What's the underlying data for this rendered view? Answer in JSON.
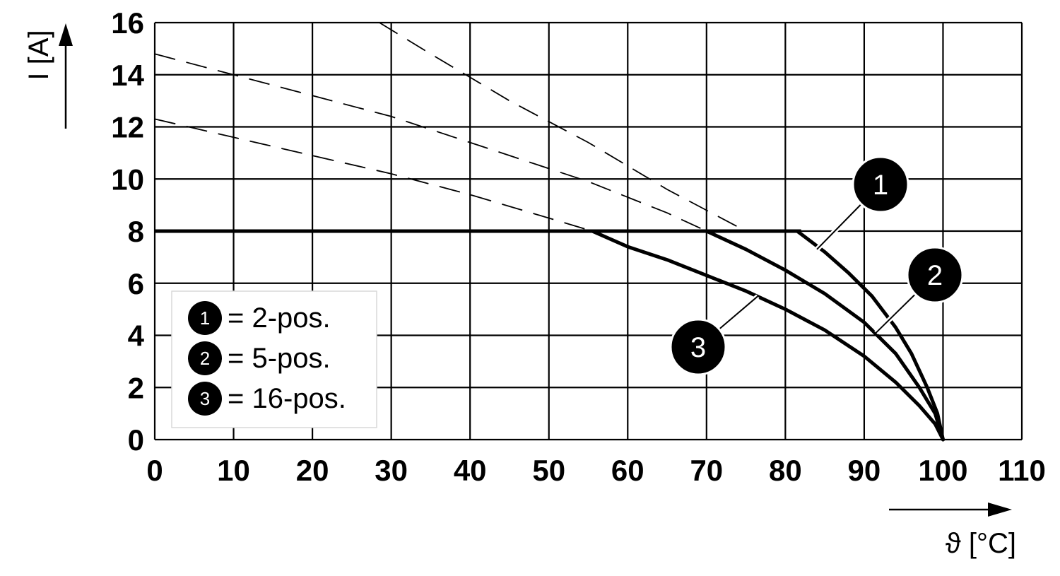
{
  "chart_data": {
    "type": "line",
    "title": "",
    "xlabel": "ϑ [°C]",
    "ylabel": "I [A]",
    "xlim": [
      0,
      110
    ],
    "ylim": [
      0,
      16
    ],
    "x_ticks": [
      "0",
      "10",
      "20",
      "30",
      "40",
      "50",
      "60",
      "70",
      "80",
      "90",
      "100",
      "110"
    ],
    "y_ticks": [
      "0",
      "2",
      "4",
      "6",
      "8",
      "10",
      "12",
      "14",
      "16"
    ],
    "grid": true,
    "legend_position": "bottom-left",
    "legend": [
      {
        "marker": "1",
        "text": "= 2-pos."
      },
      {
        "marker": "2",
        "text": "= 5-pos."
      },
      {
        "marker": "3",
        "text": "= 16-pos."
      }
    ],
    "limit_line": {
      "y": 8,
      "x_range": [
        0,
        82
      ]
    },
    "series": [
      {
        "marker": "1",
        "dashed": [
          [
            28.5,
            16
          ],
          [
            35,
            14.8
          ],
          [
            40,
            13.9
          ],
          [
            45,
            13.0
          ],
          [
            50,
            12.2
          ],
          [
            55,
            11.4
          ],
          [
            60,
            10.5
          ],
          [
            65,
            9.6
          ],
          [
            70,
            8.8
          ],
          [
            75,
            8.0
          ],
          [
            81.5,
            8.0
          ]
        ],
        "solid": [
          [
            81.5,
            8.0
          ],
          [
            85,
            7.2
          ],
          [
            88,
            6.4
          ],
          [
            91,
            5.5
          ],
          [
            94,
            4.3
          ],
          [
            96,
            3.3
          ],
          [
            98,
            2.0
          ],
          [
            99.3,
            1.0
          ],
          [
            100,
            0
          ]
        ]
      },
      {
        "marker": "2",
        "dashed": [
          [
            0,
            14.8
          ],
          [
            10,
            14.0
          ],
          [
            20,
            13.2
          ],
          [
            30,
            12.4
          ],
          [
            40,
            11.4
          ],
          [
            50,
            10.4
          ],
          [
            55,
            9.9
          ],
          [
            60,
            9.3
          ],
          [
            65,
            8.7
          ],
          [
            70,
            8.0
          ]
        ],
        "solid": [
          [
            70,
            8.0
          ],
          [
            75,
            7.3
          ],
          [
            80,
            6.5
          ],
          [
            85,
            5.6
          ],
          [
            90,
            4.5
          ],
          [
            94,
            3.3
          ],
          [
            97,
            2.0
          ],
          [
            99,
            1.0
          ],
          [
            100,
            0
          ]
        ]
      },
      {
        "marker": "3",
        "dashed": [
          [
            0,
            12.3
          ],
          [
            10,
            11.6
          ],
          [
            20,
            10.9
          ],
          [
            30,
            10.2
          ],
          [
            40,
            9.4
          ],
          [
            50,
            8.5
          ],
          [
            55.5,
            8.0
          ]
        ],
        "solid": [
          [
            55.5,
            8.0
          ],
          [
            60,
            7.4
          ],
          [
            65,
            6.9
          ],
          [
            70,
            6.3
          ],
          [
            75,
            5.7
          ],
          [
            80,
            5.0
          ],
          [
            85,
            4.2
          ],
          [
            90,
            3.2
          ],
          [
            94,
            2.2
          ],
          [
            97,
            1.3
          ],
          [
            99,
            0.6
          ],
          [
            100,
            0
          ]
        ]
      }
    ],
    "callouts": [
      {
        "marker": "1",
        "from": [
          84,
          7.3
        ]
      },
      {
        "marker": "2",
        "from": [
          91.5,
          4.1
        ]
      },
      {
        "marker": "3",
        "from": [
          76.5,
          5.5
        ]
      }
    ]
  }
}
